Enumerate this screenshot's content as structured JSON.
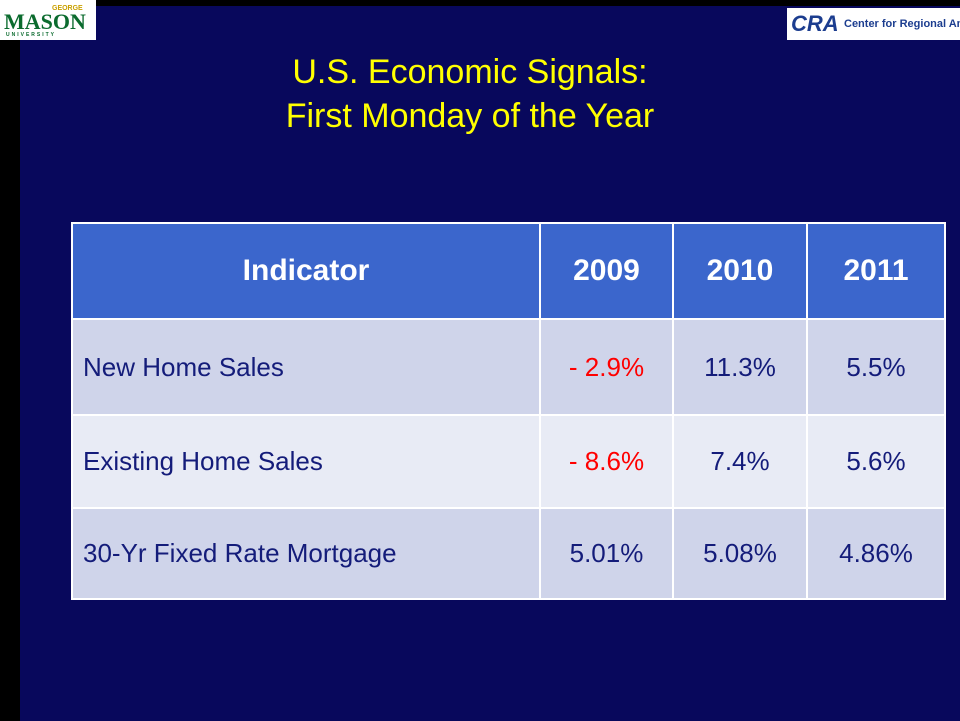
{
  "logo_left": {
    "top": "GEORGE",
    "main": "MASON",
    "bottom": "UNIVERSITY"
  },
  "logo_right": {
    "mark": "CRA",
    "text": "Center for Regional Analysis"
  },
  "title": [
    "U.S. Economic Signals:",
    "First Monday of the Year"
  ],
  "table": {
    "header": [
      "Indicator",
      "2009",
      "2010",
      "2011"
    ],
    "rows": [
      [
        "New Home Sales",
        "- 2.9%",
        "11.3%",
        "5.5%"
      ],
      [
        "Existing Home Sales",
        "- 8.6%",
        "7.4%",
        "5.6%"
      ],
      [
        "30-Yr Fixed Rate Mortgage",
        "5.01%",
        "5.08%",
        "4.86%"
      ]
    ]
  }
}
